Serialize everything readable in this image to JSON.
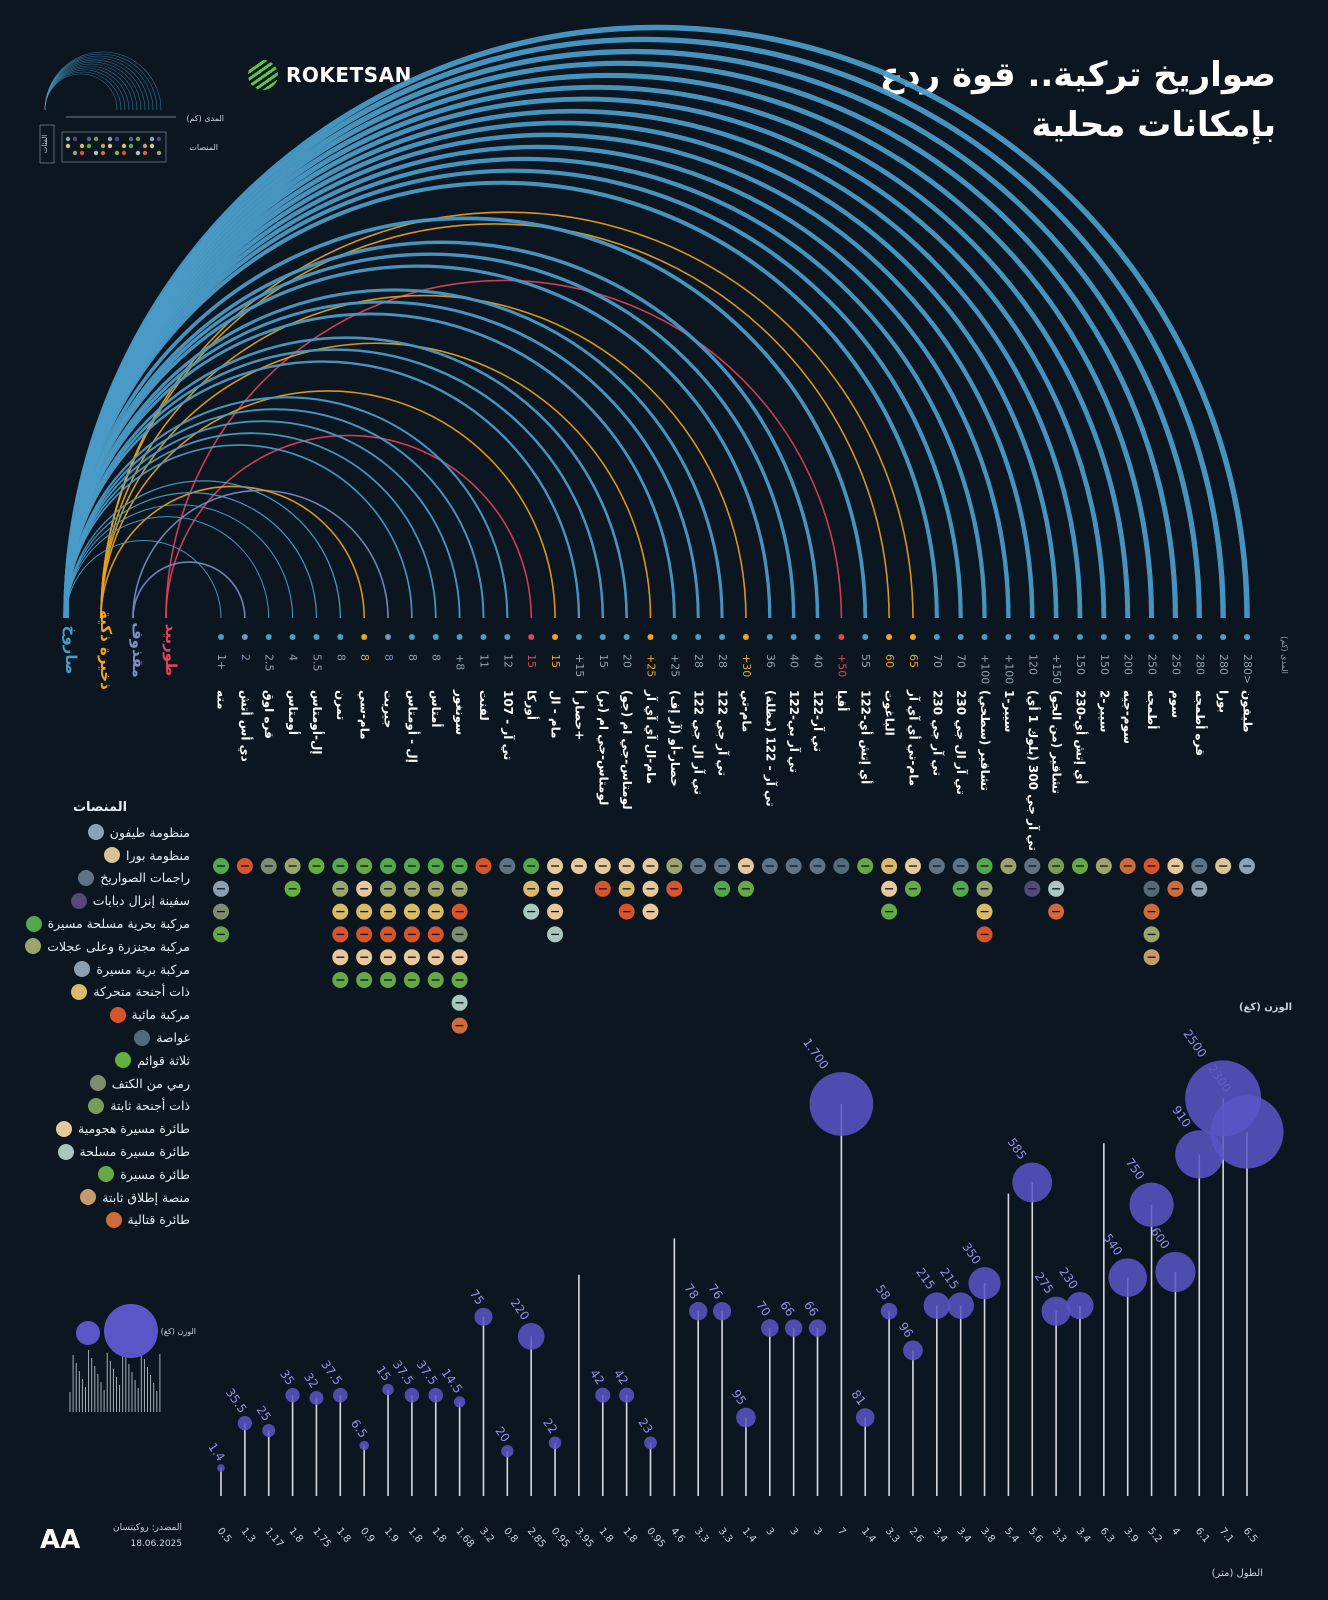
{
  "header": {
    "title_line1": "صواريخ تركية.. قوة ردع",
    "title_line2": "بإمكانات محلية",
    "brand": "ROKETSAN"
  },
  "colors": {
    "missile": "#4a9ac6",
    "smart": "#f0a31f",
    "guided": "#7a8fc5",
    "torpedo": "#e0435a",
    "bubble": "#5b56c7",
    "background": "#0b1621"
  },
  "categories": [
    {
      "label": "صاروخ",
      "color": "#4a9ac6"
    },
    {
      "label": "ذخيرة ذكية",
      "color": "#f0a31f"
    },
    {
      "label": "مقذوف",
      "color": "#7a8fc5"
    },
    {
      "label": "طوربيد",
      "color": "#e0435a"
    }
  ],
  "mini_legend": {
    "range_label": "المدى (كم)",
    "platforms_label": "المنصات",
    "classes_label": "الفئات",
    "weight_label": "الوزن (كغ)"
  },
  "axis_labels": {
    "range": "المدى (كم)",
    "weight": "الوزن (كغ)",
    "length": "الطول (متر)"
  },
  "platforms": {
    "heading": "المنصات",
    "items": [
      {
        "label": "منظومة طيفون",
        "color": "#8da3b5"
      },
      {
        "label": "منظومة بورا",
        "color": "#d9c295"
      },
      {
        "label": "راجمات الصواريخ",
        "color": "#5f7384"
      },
      {
        "label": "سفينة إنزال دبابات",
        "color": "#55487a"
      },
      {
        "label": "مركبة بحرية مسلحة مسيرة",
        "color": "#54a84c"
      },
      {
        "label": "مركبة مجنزرة وعلى عجلات",
        "color": "#9aa56c"
      },
      {
        "label": "مركبة برية مسيرة",
        "color": "#8b9fb0"
      },
      {
        "label": "ذات أجنحة متحركة",
        "color": "#d9ba6a"
      },
      {
        "label": "مركبة مائية",
        "color": "#d7542c"
      },
      {
        "label": "غواصة",
        "color": "#536a7b"
      },
      {
        "label": "ثلاثة قوائم",
        "color": "#63b03c"
      },
      {
        "label": "رمي من الكتف",
        "color": "#7e8d70"
      },
      {
        "label": "ذات أجنحة ثابتة",
        "color": "#7d9b54"
      },
      {
        "label": "طائرة مسيرة هجومية",
        "color": "#e7c89a"
      },
      {
        "label": "طائرة مسيرة مسلحة",
        "color": "#a9c6c0"
      },
      {
        "label": "طائرة مسيرة",
        "color": "#66a746"
      },
      {
        "label": "منصة إطلاق ثابتة",
        "color": "#c69a6a"
      },
      {
        "label": "طائرة قتالية",
        "color": "#ce6b3a"
      }
    ]
  },
  "footer": {
    "source": "المصدر: روكيتسان",
    "date": "18.06.2025",
    "agency_logo": "AA"
  },
  "chart_data": {
    "type": "scatter",
    "range_unit": "كم",
    "weight_unit": "كغ",
    "length_unit": "متر",
    "items": [
      {
        "name": "طيفون",
        "range": "280>",
        "cat": 0,
        "weight": 2300,
        "length": 6.5,
        "platforms": [
          0
        ]
      },
      {
        "name": "بورا",
        "range": "280",
        "cat": 0,
        "weight": 2500,
        "length": 7.1,
        "platforms": [
          1
        ]
      },
      {
        "name": "قره أطمجه",
        "range": "280",
        "cat": 0,
        "weight": 910,
        "length": 6.1,
        "platforms": [
          2,
          6
        ]
      },
      {
        "name": "سوم",
        "range": "250",
        "cat": 0,
        "weight": 600,
        "length": 4,
        "platforms": [
          13,
          17
        ]
      },
      {
        "name": "أطمجه",
        "range": "250",
        "cat": 0,
        "weight": 750,
        "length": 5.2,
        "platforms": [
          8,
          9,
          17,
          5,
          16
        ]
      },
      {
        "name": "سوم-جيه",
        "range": "200",
        "cat": 0,
        "weight": 540,
        "length": 3.9,
        "platforms": [
          17
        ]
      },
      {
        "name": "سيبر-2",
        "range": "150",
        "cat": 0,
        "weight": null,
        "length": 6.3,
        "platforms": [
          5
        ]
      },
      {
        "name": "أي إتش أي-230",
        "range": "150",
        "cat": 0,
        "weight": 230,
        "length": 3.4,
        "platforms": [
          15
        ]
      },
      {
        "name": "تشاقير (من الجو)",
        "range": "+150",
        "cat": 0,
        "weight": 275,
        "length": 3.3,
        "platforms": [
          12,
          14,
          17
        ]
      },
      {
        "name": "تي آر جي 300 (بلوك 1 أي)",
        "range": "120",
        "cat": 0,
        "weight": 585,
        "length": 5.6,
        "platforms": [
          2,
          3
        ]
      },
      {
        "name": "سيبر-1",
        "range": "+100",
        "cat": 0,
        "weight": null,
        "length": 5.4,
        "platforms": [
          5
        ]
      },
      {
        "name": "تشاقير (سطحي)",
        "range": "+100",
        "cat": 0,
        "weight": 350,
        "length": 3.8,
        "platforms": [
          4,
          5,
          7,
          8
        ]
      },
      {
        "name": "تي آر ال جي 230",
        "range": "70",
        "cat": 0,
        "weight": 215,
        "length": 3.4,
        "platforms": [
          2,
          4
        ]
      },
      {
        "name": "تي آر جي 230",
        "range": "70",
        "cat": 0,
        "weight": 215,
        "length": 3.4,
        "platforms": [
          2
        ]
      },
      {
        "name": "مام-تي أي آي آر",
        "range": "65",
        "cat": 1,
        "weight": 96,
        "length": 2.6,
        "platforms": [
          13,
          15
        ]
      },
      {
        "name": "الباغوت",
        "range": "60",
        "cat": 1,
        "weight": 58,
        "length": 3.3,
        "platforms": [
          7,
          13,
          15
        ]
      },
      {
        "name": "أي إتش أي-122",
        "range": "55",
        "cat": 0,
        "weight": 81,
        "length": 1.4,
        "platforms": [
          15
        ]
      },
      {
        "name": "أقيا",
        "range": "+50",
        "cat": 3,
        "weight": 1700,
        "length": 7,
        "platforms": [
          9
        ]
      },
      {
        "name": "تي آر-122",
        "range": "40",
        "cat": 0,
        "weight": 66,
        "length": 3,
        "platforms": [
          2
        ]
      },
      {
        "name": "تي آر بي-122",
        "range": "40",
        "cat": 0,
        "weight": 66,
        "length": 3,
        "platforms": [
          2
        ]
      },
      {
        "name": "تي آر - 122 (مظلة)",
        "range": "36",
        "cat": 0,
        "weight": 70,
        "length": 3,
        "platforms": [
          2
        ]
      },
      {
        "name": "مام-تي",
        "range": "+30",
        "cat": 1,
        "weight": 95,
        "length": 1.4,
        "platforms": [
          13,
          15
        ]
      },
      {
        "name": "تي آر جي 122",
        "range": "28",
        "cat": 0,
        "weight": 76,
        "length": 3.3,
        "platforms": [
          2,
          4
        ]
      },
      {
        "name": "تي آر ال جي 122",
        "range": "28",
        "cat": 0,
        "weight": 78,
        "length": 3.3,
        "platforms": [
          2
        ]
      },
      {
        "name": "حصار-أو (آر إف)",
        "range": "+25",
        "cat": 0,
        "weight": null,
        "length": 4.6,
        "platforms": [
          5,
          8
        ]
      },
      {
        "name": "مام-ال آي آي آر",
        "range": "+25",
        "cat": 1,
        "weight": 23,
        "length": 0.95,
        "platforms": [
          13,
          13,
          13
        ]
      },
      {
        "name": "لومتاس-جي ام (جو)",
        "range": "20",
        "cat": 0,
        "weight": 42,
        "length": 1.8,
        "platforms": [
          13,
          7,
          8
        ]
      },
      {
        "name": "لومتاس-جي ام (بر)",
        "range": "15",
        "cat": 0,
        "weight": 42,
        "length": 1.8,
        "platforms": [
          13,
          8
        ]
      },
      {
        "name": "حصار أ+",
        "range": "+15",
        "cat": 0,
        "weight": null,
        "length": 3.95,
        "platforms": [
          13
        ]
      },
      {
        "name": "مام - ال",
        "range": "15",
        "cat": 1,
        "weight": 22,
        "length": 0.95,
        "platforms": [
          13,
          13,
          13,
          14
        ]
      },
      {
        "name": "أوركا",
        "range": "15",
        "cat": 3,
        "weight": 220,
        "length": 2.85,
        "platforms": [
          4,
          7,
          14
        ]
      },
      {
        "name": "تي آر - 107",
        "range": "12",
        "cat": 0,
        "weight": 20,
        "length": 0.8,
        "platforms": [
          2
        ]
      },
      {
        "name": "لفنت",
        "range": "11",
        "cat": 0,
        "weight": 75,
        "length": 3.2,
        "platforms": [
          8
        ]
      },
      {
        "name": "سونغور",
        "range": "+8",
        "cat": 0,
        "weight": 14.5,
        "length": 1.68,
        "platforms": [
          4,
          5,
          8,
          11,
          13,
          15,
          14,
          17
        ]
      },
      {
        "name": "أمتاس",
        "range": "8",
        "cat": 0,
        "weight": 37.5,
        "length": 1.8,
        "platforms": [
          4,
          5,
          7,
          8,
          13,
          15
        ]
      },
      {
        "name": "إل - أومتاس",
        "range": "8",
        "cat": 0,
        "weight": 37.5,
        "length": 1.8,
        "platforms": [
          4,
          5,
          7,
          8,
          13,
          15
        ]
      },
      {
        "name": "جيريت",
        "range": "8",
        "cat": 2,
        "weight": 15,
        "length": 1.9,
        "platforms": [
          4,
          5,
          7,
          8,
          13,
          15
        ]
      },
      {
        "name": "مام-سي",
        "range": "8",
        "cat": 1,
        "weight": 6.5,
        "length": 0.9,
        "platforms": [
          15,
          13,
          7,
          8,
          13,
          15
        ]
      },
      {
        "name": "تمرن",
        "range": "8",
        "cat": 0,
        "weight": 37.5,
        "length": 1.8,
        "platforms": [
          4,
          5,
          7,
          8,
          13,
          15
        ]
      },
      {
        "name": "إل-أومتاس",
        "range": "5.5",
        "cat": 0,
        "weight": 32,
        "length": 1.75,
        "platforms": [
          10
        ]
      },
      {
        "name": "أومتاس",
        "range": "4",
        "cat": 0,
        "weight": 35,
        "length": 1.8,
        "platforms": [
          5,
          10
        ]
      },
      {
        "name": "قره اوق",
        "range": "2.5",
        "cat": 0,
        "weight": 25,
        "length": 1.17,
        "platforms": [
          11
        ]
      },
      {
        "name": "دي أس أتش",
        "range": "2",
        "cat": 2,
        "weight": 35.5,
        "length": 1.3,
        "platforms": [
          8
        ]
      },
      {
        "name": "مته",
        "range": "1+",
        "cat": 0,
        "weight": 1.4,
        "length": 0.5,
        "platforms": [
          4,
          6,
          11,
          15
        ]
      }
    ]
  }
}
